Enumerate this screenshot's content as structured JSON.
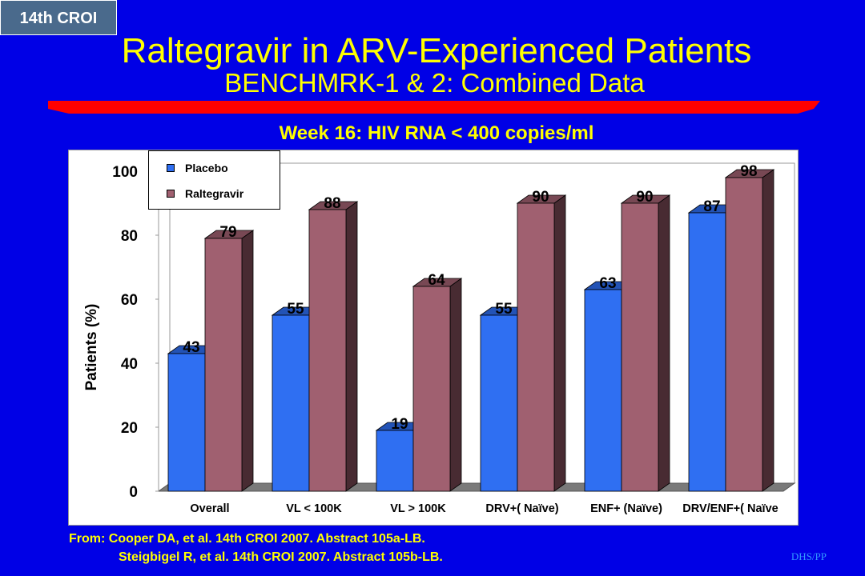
{
  "badge": "14th CROI",
  "title": "Raltegravir in ARV-Experienced Patients",
  "subtitle": "BENCHMRK-1 & 2: Combined Data",
  "colors": {
    "background": "#0000e6",
    "title": "#ffff00",
    "rule": "#ff0000",
    "placebo": "#2f6ff2",
    "raltegravir": "#a06070"
  },
  "chart_data": {
    "type": "bar",
    "title": "Week 16: HIV RNA < 400 copies/ml",
    "ylabel": "Patients (%)",
    "xlabel": "",
    "ylim": [
      0,
      100
    ],
    "yticks": [
      0,
      20,
      40,
      60,
      80,
      100
    ],
    "categories": [
      "Overall",
      "VL < 100K",
      "VL > 100K",
      "DRV+( Naïve)",
      "ENF+ (Naïve)",
      "DRV/ENF+( Naïve"
    ],
    "series": [
      {
        "name": "Placebo",
        "values": [
          43,
          55,
          19,
          55,
          63,
          87
        ]
      },
      {
        "name": "Raltegravir",
        "values": [
          79,
          88,
          64,
          90,
          90,
          98
        ]
      }
    ],
    "legend": "top-left",
    "grid": false,
    "style": "3d"
  },
  "footnote": {
    "line1": "From: Cooper DA, et al. 14th CROI 2007. Abstract 105a-LB.",
    "line2": "Steigbigel R, et al. 14th CROI 2007. Abstract 105b-LB."
  },
  "footer_code": "DHS/PP"
}
